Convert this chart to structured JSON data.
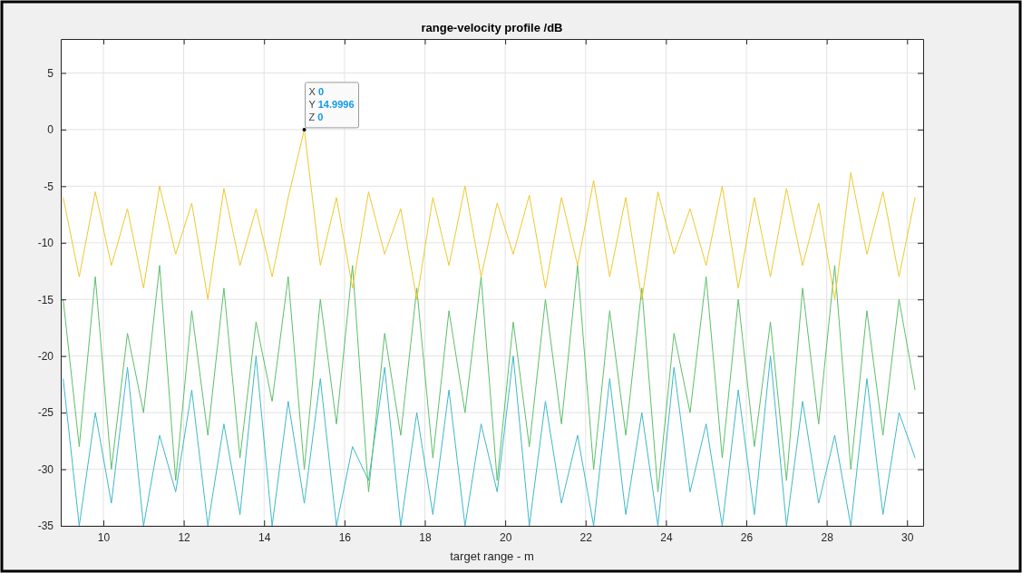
{
  "chart_data": {
    "type": "line",
    "title": "range-velocity profile /dB",
    "xlabel": "target range - m",
    "x": [
      9.0,
      9.4,
      9.8,
      10.2,
      10.6,
      11.0,
      11.4,
      11.8,
      12.2,
      12.6,
      13.0,
      13.4,
      13.8,
      14.2,
      14.6,
      15.0,
      15.4,
      15.8,
      16.2,
      16.6,
      17.0,
      17.4,
      17.8,
      18.2,
      18.6,
      19.0,
      19.4,
      19.8,
      20.2,
      20.6,
      21.0,
      21.4,
      21.8,
      22.2,
      22.6,
      23.0,
      23.4,
      23.8,
      24.2,
      24.6,
      25.0,
      25.4,
      25.8,
      26.2,
      26.6,
      27.0,
      27.4,
      27.8,
      28.2,
      28.6,
      29.0,
      29.4,
      29.8,
      30.2
    ],
    "series": [
      {
        "color": "#3fb8c8",
        "values": [
          -22,
          -35,
          -25,
          -33,
          -21,
          -35,
          -27,
          -32,
          -23,
          -35,
          -26,
          -34,
          -20,
          -35,
          -24,
          -33,
          -22,
          -35,
          -28,
          -31,
          -21,
          -35,
          -25,
          -34,
          -23,
          -35,
          -26,
          -32,
          -20,
          -35,
          -24,
          -33,
          -27,
          -35,
          -22,
          -34,
          -25,
          -35,
          -21,
          -32,
          -26,
          -35,
          -23,
          -34,
          -20,
          -35,
          -24,
          -33,
          -27,
          -35,
          -22,
          -34,
          -25,
          -29
        ]
      },
      {
        "color": "#5cbf6a",
        "values": [
          -15,
          -28,
          -13,
          -30,
          -18,
          -25,
          -12,
          -31,
          -16,
          -27,
          -14,
          -29,
          -17,
          -24,
          -13,
          -30,
          -15,
          -26,
          -12,
          -32,
          -18,
          -27,
          -14,
          -29,
          -16,
          -25,
          -13,
          -31,
          -17,
          -28,
          -15,
          -26,
          -12,
          -30,
          -16,
          -27,
          -14,
          -32,
          -18,
          -25,
          -13,
          -29,
          -15,
          -28,
          -17,
          -31,
          -14,
          -26,
          -12,
          -30,
          -16,
          -27,
          -15,
          -23
        ]
      },
      {
        "color": "#edc82f",
        "values": [
          -6,
          -13,
          -5.5,
          -12,
          -7,
          -14,
          -5,
          -11,
          -6.5,
          -15,
          -5.2,
          -12,
          -7,
          -13,
          -6,
          0,
          -12,
          -6,
          -14,
          -5.5,
          -11,
          -7,
          -15,
          -6,
          -12,
          -5,
          -13,
          -6.5,
          -11,
          -5.8,
          -14,
          -6,
          -12,
          -4.5,
          -13,
          -6,
          -15,
          -5.5,
          -11,
          -7,
          -12,
          -5,
          -14,
          -6,
          -13,
          -5.2,
          -12,
          -6.5,
          -15,
          -3.8,
          -11,
          -5.5,
          -13,
          -6
        ]
      }
    ],
    "xlim": [
      8.94,
      30.4
    ],
    "ylim": [
      -35,
      8
    ],
    "xticks": [
      10,
      12,
      14,
      16,
      18,
      20,
      22,
      24,
      26,
      28,
      30
    ],
    "yticks": [
      -35,
      -30,
      -25,
      -20,
      -15,
      -10,
      -5,
      0,
      5
    ],
    "grid": true,
    "marker": "none",
    "line_style": "solid",
    "annotations": [
      {
        "text": "X 0\nY 14.9996\nZ 0",
        "x": 15,
        "y": 0
      }
    ]
  }
}
